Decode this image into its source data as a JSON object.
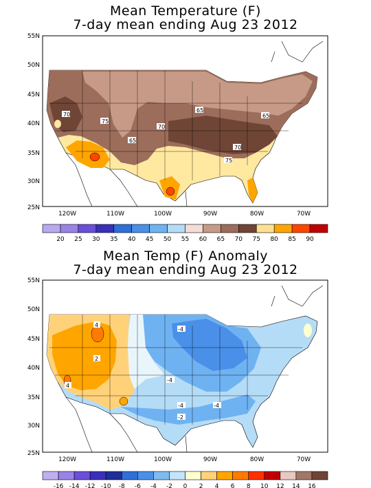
{
  "maps": [
    {
      "title_line1": "Mean Temperature (F)",
      "title_line2": "7-day mean ending Aug 23 2012",
      "lat_labels": [
        "55N",
        "50N",
        "45N",
        "40N",
        "35N",
        "30N",
        "25N"
      ],
      "lon_labels": [
        "120W",
        "110W",
        "100W",
        "90W",
        "80W",
        "70W"
      ],
      "contour_labels": [
        "70",
        "75",
        "65",
        "70",
        "65",
        "65",
        "70",
        "75"
      ],
      "legend": {
        "labels": [
          "20",
          "25",
          "30",
          "35",
          "40",
          "45",
          "50",
          "55",
          "60",
          "65",
          "70",
          "75",
          "80",
          "85",
          "90"
        ],
        "colors": [
          "#b9a8f0",
          "#9a82e6",
          "#6a4fd8",
          "#3a2fb8",
          "#2e6fd8",
          "#4a90e8",
          "#6fb2f2",
          "#b5dcf7",
          "#f3ddd6",
          "#c79a88",
          "#9c6d5b",
          "#6f4536",
          "#ffe090",
          "#ffa500",
          "#ff4500",
          "#c00000"
        ]
      }
    },
    {
      "title_line1": "Mean Temp (F) Anomaly",
      "title_line2": "7-day mean ending Aug 23 2012",
      "lat_labels": [
        "55N",
        "50N",
        "45N",
        "40N",
        "35N",
        "30N",
        "25N"
      ],
      "lon_labels": [
        "120W",
        "110W",
        "100W",
        "90W",
        "80W",
        "70W"
      ],
      "contour_labels": [
        "4",
        "2",
        "-4",
        "4",
        "-4",
        "-4",
        "-2",
        "-4"
      ],
      "legend": {
        "labels": [
          "-16",
          "-14",
          "-12",
          "-10",
          "-8",
          "-6",
          "-4",
          "-2",
          "0",
          "2",
          "4",
          "6",
          "8",
          "10",
          "12",
          "14",
          "16"
        ],
        "colors": [
          "#c0b0f0",
          "#9a82e6",
          "#6a4fd8",
          "#3a2fb8",
          "#1f2f98",
          "#2e6fd8",
          "#4a90e8",
          "#7fbaf0",
          "#c4e4fa",
          "#ffffd0",
          "#ffd27a",
          "#ffa500",
          "#ff7a00",
          "#ff3000",
          "#c00000",
          "#e8c8c0",
          "#a07868",
          "#6f4536"
        ]
      }
    }
  ]
}
